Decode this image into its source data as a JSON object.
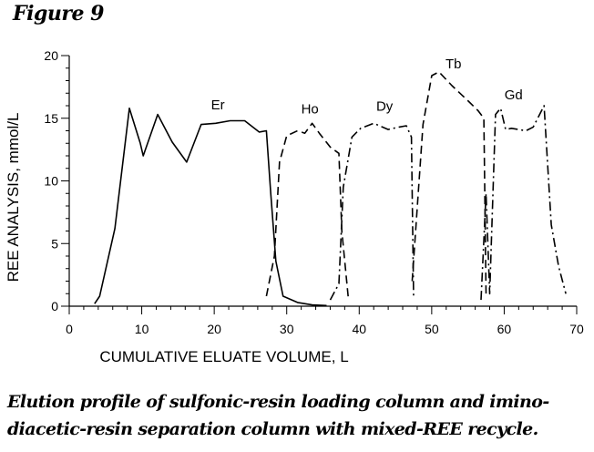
{
  "figure_label": "Figure 9",
  "caption": {
    "line1": "Elution profile of sulfonic-resin loading column and imino-",
    "line2": "diacetic-resin separation column with mixed-REE recycle."
  },
  "chart_data": {
    "type": "line",
    "title": "",
    "xlabel": "CUMULATIVE ELUATE VOLUME, L",
    "ylabel": "REE ANALYSIS, mmol/L",
    "xlim": [
      0,
      70
    ],
    "ylim": [
      0,
      20
    ],
    "xticks": [
      0,
      10,
      20,
      30,
      40,
      50,
      60,
      70
    ],
    "yticks": [
      0,
      5,
      10,
      15,
      20
    ],
    "grid": false,
    "legend": "none",
    "series": [
      {
        "name": "Er",
        "dash": "solid",
        "x": [
          3.5,
          4.2,
          6.3,
          8.3,
          9.8,
          10.2,
          12.2,
          14.2,
          16.2,
          18.2,
          20.2,
          22.2,
          24.2,
          26.2,
          27.2,
          27.8,
          28.5,
          29.5,
          31.5,
          33.5,
          35.5
        ],
        "y": [
          0.2,
          0.8,
          6.2,
          15.8,
          13.0,
          12.0,
          15.3,
          13.1,
          11.5,
          14.5,
          14.6,
          14.8,
          14.8,
          13.9,
          14.0,
          9.0,
          3.6,
          0.8,
          0.3,
          0.1,
          0.05
        ]
      },
      {
        "name": "Ho",
        "dash": "dashed",
        "x": [
          27.2,
          28.3,
          29.0,
          30.0,
          31.5,
          32.5,
          33.5,
          34.5,
          36.0,
          37.2,
          37.6,
          38.5
        ],
        "y": [
          0.8,
          4.0,
          11.5,
          13.6,
          14.0,
          13.8,
          14.6,
          13.8,
          12.7,
          12.2,
          6.0,
          0.6
        ]
      },
      {
        "name": "Dy",
        "dash": "dashdot",
        "x": [
          36.0,
          37.2,
          37.8,
          39.0,
          40.2,
          42.0,
          44.0,
          45.5,
          46.5,
          47.2,
          47.5
        ],
        "y": [
          0.5,
          1.8,
          9.5,
          13.5,
          14.2,
          14.6,
          14.1,
          14.3,
          14.4,
          13.5,
          0.6
        ]
      },
      {
        "name": "Tb",
        "dash": "dashed",
        "x": [
          47.3,
          48.8,
          50.0,
          51.0,
          52.8,
          55.0,
          56.4,
          57.2,
          57.5
        ],
        "y": [
          2.0,
          14.5,
          18.4,
          18.7,
          17.6,
          16.4,
          15.6,
          15.0,
          1.0
        ]
      },
      {
        "name": "Gd",
        "dash": "dashdot",
        "x": [
          56.8,
          57.5,
          58.0,
          58.8,
          59.5,
          60.2,
          61.0,
          63.0,
          64.0,
          65.5,
          66.5,
          67.5,
          68.5
        ],
        "y": [
          0.5,
          9.0,
          1.0,
          15.3,
          15.8,
          14.1,
          14.2,
          14.0,
          14.3,
          16.0,
          6.5,
          3.2,
          1.0
        ]
      }
    ],
    "annotations": [
      {
        "text": "Er",
        "x": 20.5,
        "y": 15.7
      },
      {
        "text": "Ho",
        "x": 33.2,
        "y": 15.4
      },
      {
        "text": "Dy",
        "x": 43.5,
        "y": 15.6
      },
      {
        "text": "Tb",
        "x": 53.0,
        "y": 19.0
      },
      {
        "text": "Gd",
        "x": 61.3,
        "y": 16.5
      }
    ]
  }
}
